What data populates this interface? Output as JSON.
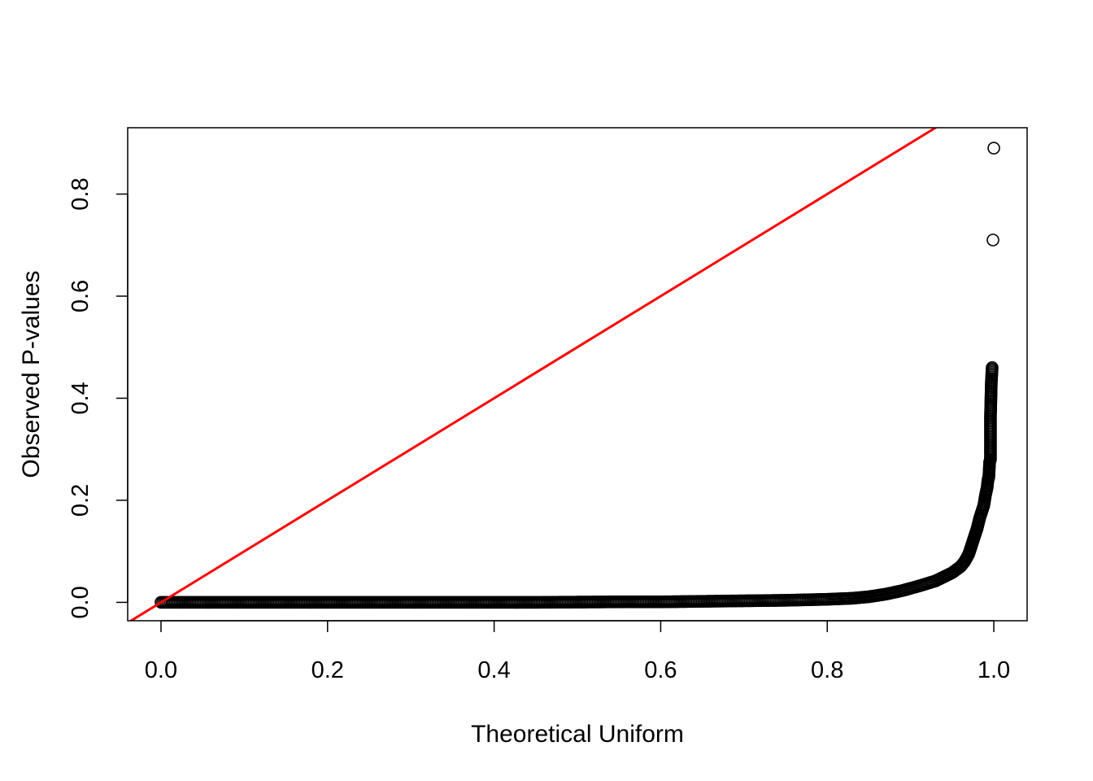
{
  "chart_data": {
    "type": "scatter",
    "title": "",
    "xlabel": "Theoretical Uniform",
    "ylabel": "Observed P-values",
    "xlim": [
      -0.04,
      1.04
    ],
    "ylim": [
      -0.036,
      0.93
    ],
    "x_ticks": [
      0.0,
      0.2,
      0.4,
      0.6,
      0.8,
      1.0
    ],
    "x_tick_labels": [
      "0.0",
      "0.2",
      "0.4",
      "0.6",
      "0.8",
      "1.0"
    ],
    "y_ticks": [
      0.0,
      0.2,
      0.4,
      0.6,
      0.8
    ],
    "y_tick_labels": [
      "0.0",
      "0.2",
      "0.4",
      "0.6",
      "0.8"
    ],
    "grid": false,
    "legend": "none",
    "reference_line": {
      "intercept": 0,
      "slope": 1,
      "color": "#ff0000"
    },
    "point_style": "open-circle",
    "point_color": "#000000",
    "series": [
      {
        "points": [
          [
            0.0,
            0.0
          ],
          [
            0.05,
            0.0
          ],
          [
            0.1,
            0.0
          ],
          [
            0.15,
            0.0
          ],
          [
            0.2,
            0.0
          ],
          [
            0.25,
            0.0
          ],
          [
            0.3,
            0.0
          ],
          [
            0.35,
            0.0
          ],
          [
            0.4,
            0.0
          ],
          [
            0.45,
            0.0
          ],
          [
            0.5,
            0.0005
          ],
          [
            0.55,
            0.001
          ],
          [
            0.6,
            0.001
          ],
          [
            0.65,
            0.002
          ],
          [
            0.7,
            0.003
          ],
          [
            0.75,
            0.004
          ],
          [
            0.8,
            0.006
          ],
          [
            0.83,
            0.008
          ],
          [
            0.85,
            0.011
          ],
          [
            0.87,
            0.016
          ],
          [
            0.89,
            0.023
          ],
          [
            0.91,
            0.032
          ],
          [
            0.93,
            0.042
          ],
          [
            0.95,
            0.058
          ],
          [
            0.96,
            0.07
          ],
          [
            0.965,
            0.08
          ],
          [
            0.97,
            0.095
          ],
          [
            0.975,
            0.12
          ],
          [
            0.98,
            0.145
          ],
          [
            0.983,
            0.165
          ],
          [
            0.986,
            0.18
          ],
          [
            0.988,
            0.19
          ],
          [
            0.99,
            0.21
          ],
          [
            0.992,
            0.225
          ],
          [
            0.993,
            0.24
          ],
          [
            0.994,
            0.245
          ],
          [
            0.995,
            0.275
          ],
          [
            0.996,
            0.28
          ],
          [
            0.996,
            0.365
          ],
          [
            0.997,
            0.43
          ],
          [
            0.998,
            0.46
          ],
          [
            0.999,
            0.71
          ],
          [
            1.0,
            0.89
          ]
        ]
      }
    ]
  }
}
